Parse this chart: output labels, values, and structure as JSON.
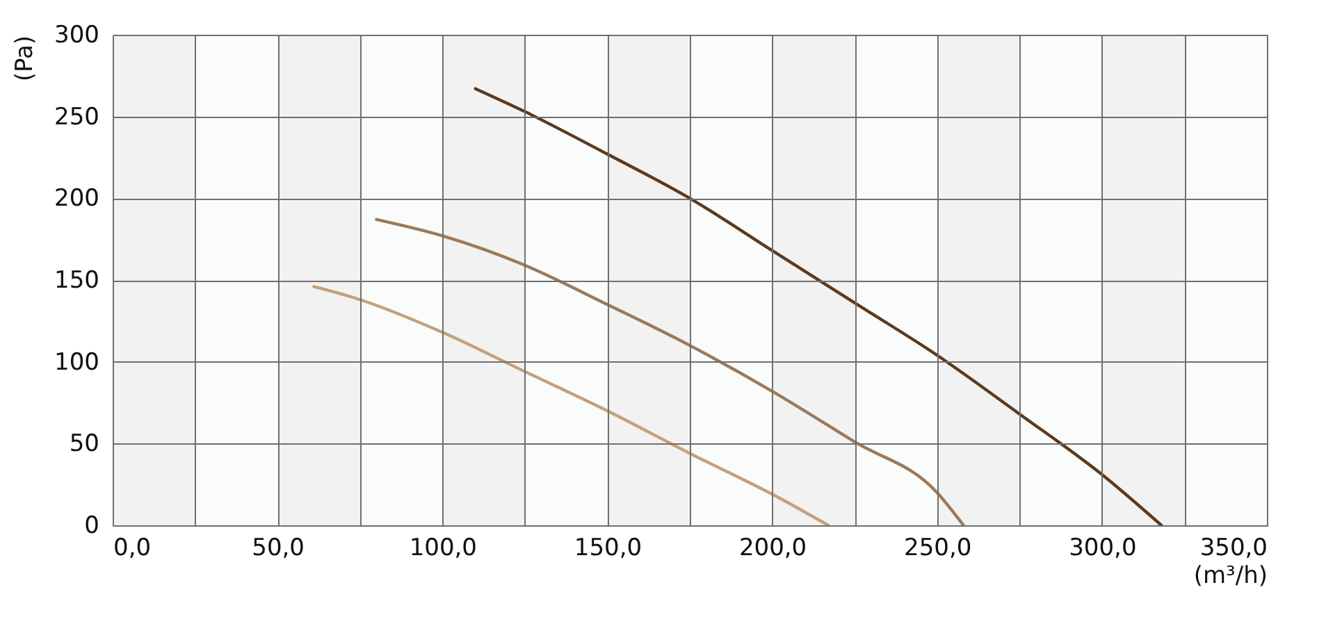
{
  "chart_data": {
    "type": "line",
    "xlabel": "(m³/h)",
    "ylabel": "(Pa)",
    "xlim": [
      0,
      350
    ],
    "ylim": [
      0,
      300
    ],
    "xticks": [
      {
        "value": 0,
        "label": "0,0"
      },
      {
        "value": 25,
        "label": null
      },
      {
        "value": 50,
        "label": "50,0"
      },
      {
        "value": 75,
        "label": null
      },
      {
        "value": 100,
        "label": "100,0"
      },
      {
        "value": 125,
        "label": null
      },
      {
        "value": 150,
        "label": "150,0"
      },
      {
        "value": 175,
        "label": null
      },
      {
        "value": 200,
        "label": "200,0"
      },
      {
        "value": 225,
        "label": null
      },
      {
        "value": 250,
        "label": "250,0"
      },
      {
        "value": 275,
        "label": null
      },
      {
        "value": 300,
        "label": "300,0"
      },
      {
        "value": 325,
        "label": null
      },
      {
        "value": 350,
        "label": "350,0"
      }
    ],
    "yticks": [
      0,
      50,
      100,
      150,
      200,
      250,
      300
    ],
    "grid": true,
    "marker": "none",
    "line_style": "solid",
    "bands": [
      {
        "axis": "x",
        "from": 0,
        "to": 25,
        "color": "#f2f2f2"
      },
      {
        "axis": "x",
        "from": 50,
        "to": 75,
        "color": "#f2f2f2"
      },
      {
        "axis": "x",
        "from": 100,
        "to": 125,
        "color": "#f2f2f2"
      },
      {
        "axis": "x",
        "from": 150,
        "to": 175,
        "color": "#f2f2f2"
      },
      {
        "axis": "x",
        "from": 200,
        "to": 225,
        "color": "#f2f2f2"
      },
      {
        "axis": "x",
        "from": 250,
        "to": 275,
        "color": "#f2f2f2"
      },
      {
        "axis": "x",
        "from": 300,
        "to": 325,
        "color": "#f2f2f2"
      }
    ],
    "series": [
      {
        "color": "#5c3a1e",
        "x": [
          110,
          125,
          150,
          175,
          200,
          225,
          250,
          275,
          300,
          318
        ],
        "values": [
          267,
          253,
          227,
          200,
          168,
          136,
          104,
          68,
          31,
          0
        ]
      },
      {
        "color": "#9b7a5a",
        "x": [
          80,
          100,
          125,
          150,
          175,
          200,
          225,
          250,
          258
        ],
        "values": [
          187,
          177,
          159,
          135,
          110,
          82,
          51,
          20,
          0
        ]
      },
      {
        "color": "#c4a07c",
        "x": [
          61,
          75,
          100,
          125,
          150,
          175,
          200,
          217
        ],
        "values": [
          146,
          138,
          118,
          94,
          70,
          44,
          19,
          0
        ]
      }
    ]
  }
}
